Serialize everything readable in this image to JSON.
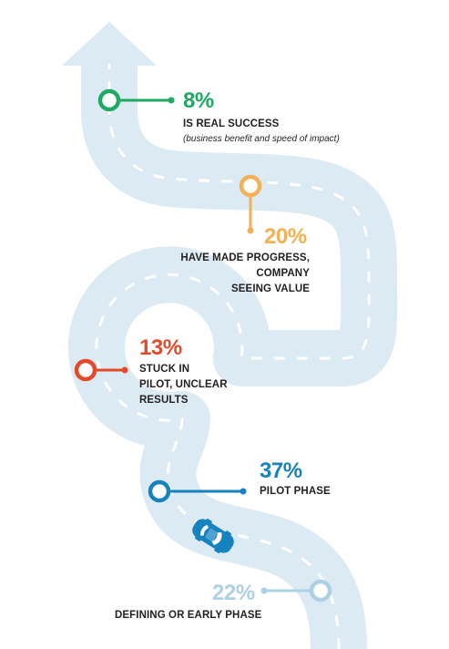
{
  "colors": {
    "road": "#dceaf4",
    "dash": "#ffffff",
    "green": "#1fa861",
    "orange": "#f1b154",
    "red": "#e34a2a",
    "blue": "#1682be",
    "light_blue": "#acd1e7",
    "text": "#231f20",
    "car": "#1682be"
  },
  "stages": [
    {
      "id": "real-success",
      "value": "8%",
      "label": "IS REAL SUCCESS",
      "note": "(business benefit and speed of impact)"
    },
    {
      "id": "progress",
      "value": "20%",
      "label_lines": [
        "HAVE MADE PROGRESS,",
        "COMPANY",
        "SEEING VALUE"
      ]
    },
    {
      "id": "stuck-in-pilot",
      "value": "13%",
      "label_lines": [
        "STUCK IN",
        "PILOT, UNCLEAR",
        "RESULTS"
      ]
    },
    {
      "id": "pilot-phase",
      "value": "37%",
      "label": "PILOT PHASE"
    },
    {
      "id": "early-phase",
      "value": "22%",
      "label": "DEFINING OR EARLY PHASE"
    }
  ],
  "icons": {
    "car": "car-icon",
    "arrow": "arrow-head-icon"
  }
}
